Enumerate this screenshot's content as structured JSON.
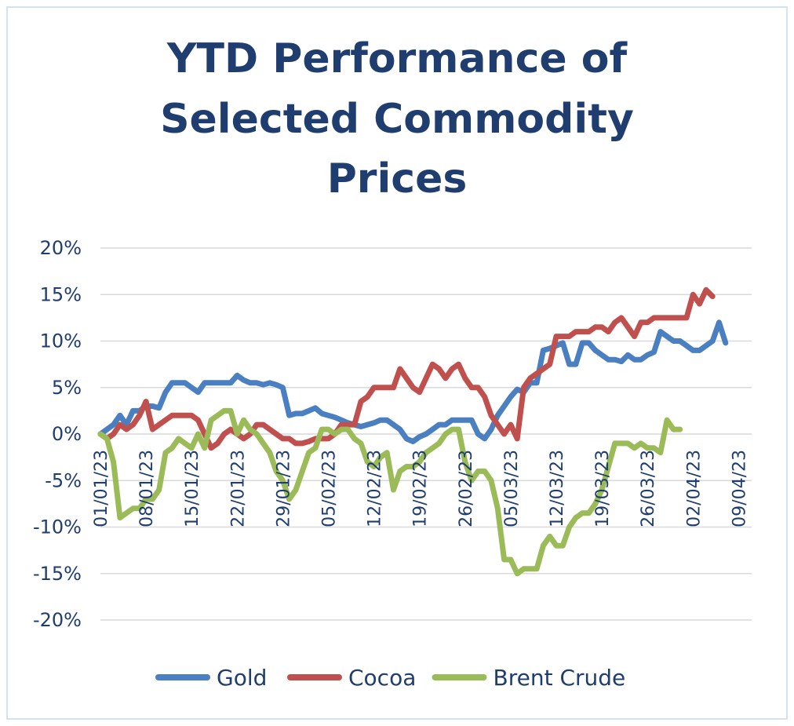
{
  "chart_data": {
    "type": "line",
    "title": [
      "YTD Performance of",
      "Selected Commodity",
      "Prices"
    ],
    "xlabel": "",
    "ylabel": "",
    "ylim": [
      -20,
      20
    ],
    "y_ticks": [
      20,
      15,
      10,
      5,
      0,
      -5,
      -10,
      -15,
      -20
    ],
    "y_tick_labels": [
      "20%",
      "15%",
      "10%",
      "5%",
      "0%",
      "-5%",
      "-10%",
      "-15%",
      "-20%"
    ],
    "x_range": [
      0,
      100
    ],
    "x_ticks": [
      0,
      7,
      14,
      21,
      28,
      35,
      42,
      49,
      56,
      63,
      70,
      77,
      84,
      91,
      98
    ],
    "x_tick_labels": [
      "01/01/23",
      "08/01/23",
      "15/01/23",
      "22/01/23",
      "29/01/23",
      "05/02/23",
      "12/02/23",
      "19/02/23",
      "26/02/23",
      "05/03/23",
      "12/03/23",
      "19/03/23",
      "26/03/23",
      "02/04/23",
      "09/04/23"
    ],
    "grid": true,
    "legend_position": "bottom",
    "series": [
      {
        "name": "Gold",
        "color": "#4a7fc1",
        "points": [
          [
            0,
            0
          ],
          [
            1,
            0.5
          ],
          [
            2,
            1
          ],
          [
            3,
            2
          ],
          [
            4,
            1
          ],
          [
            5,
            2.5
          ],
          [
            6,
            2.5
          ],
          [
            7,
            3
          ],
          [
            8,
            3
          ],
          [
            9,
            2.8
          ],
          [
            10,
            4.5
          ],
          [
            11,
            5.5
          ],
          [
            12,
            5.5
          ],
          [
            13,
            5.5
          ],
          [
            14,
            5
          ],
          [
            15,
            4.5
          ],
          [
            16,
            5.5
          ],
          [
            17,
            5.5
          ],
          [
            18,
            5.5
          ],
          [
            19,
            5.5
          ],
          [
            20,
            5.5
          ],
          [
            21,
            6.3
          ],
          [
            22,
            5.8
          ],
          [
            23,
            5.5
          ],
          [
            24,
            5.5
          ],
          [
            25,
            5.3
          ],
          [
            26,
            5.5
          ],
          [
            27,
            5.3
          ],
          [
            28,
            5
          ],
          [
            29,
            2
          ],
          [
            30,
            2.2
          ],
          [
            31,
            2.2
          ],
          [
            32,
            2.5
          ],
          [
            33,
            2.8
          ],
          [
            34,
            2.2
          ],
          [
            35,
            2
          ],
          [
            36,
            1.8
          ],
          [
            37,
            1.5
          ],
          [
            38,
            1.2
          ],
          [
            39,
            1
          ],
          [
            40,
            0.8
          ],
          [
            41,
            1
          ],
          [
            42,
            1.2
          ],
          [
            43,
            1.5
          ],
          [
            44,
            1.5
          ],
          [
            45,
            1
          ],
          [
            46,
            0.5
          ],
          [
            47,
            -0.5
          ],
          [
            48,
            -0.8
          ],
          [
            49,
            -0.3
          ],
          [
            50,
            0
          ],
          [
            51,
            0.5
          ],
          [
            52,
            1
          ],
          [
            53,
            1
          ],
          [
            54,
            1.5
          ],
          [
            55,
            1.5
          ],
          [
            56,
            1.5
          ],
          [
            57,
            1.5
          ],
          [
            58,
            0
          ],
          [
            59,
            -0.5
          ],
          [
            60,
            0.5
          ],
          [
            61,
            2
          ],
          [
            62,
            3
          ],
          [
            63,
            4
          ],
          [
            64,
            4.8
          ],
          [
            65,
            4.5
          ],
          [
            66,
            5.5
          ],
          [
            67,
            5.5
          ],
          [
            68,
            9
          ],
          [
            69,
            9.2
          ],
          [
            70,
            9.5
          ],
          [
            71,
            9.8
          ],
          [
            72,
            7.5
          ],
          [
            73,
            7.5
          ],
          [
            74,
            9.8
          ],
          [
            75,
            9.8
          ],
          [
            76,
            9
          ],
          [
            77,
            8.5
          ],
          [
            78,
            8
          ],
          [
            79,
            8
          ],
          [
            80,
            7.8
          ],
          [
            81,
            8.5
          ],
          [
            82,
            8
          ],
          [
            83,
            8
          ],
          [
            84,
            8.5
          ],
          [
            85,
            8.8
          ],
          [
            86,
            11
          ],
          [
            87,
            10.5
          ],
          [
            88,
            10
          ],
          [
            89,
            10
          ],
          [
            90,
            9.5
          ],
          [
            91,
            9
          ],
          [
            92,
            9
          ],
          [
            93,
            9.5
          ],
          [
            94,
            10
          ],
          [
            95,
            12
          ],
          [
            96,
            9.8
          ]
        ]
      },
      {
        "name": "Cocoa",
        "color": "#c0504d",
        "points": [
          [
            0,
            0
          ],
          [
            1,
            -0.5
          ],
          [
            2,
            0
          ],
          [
            3,
            1
          ],
          [
            4,
            0.5
          ],
          [
            5,
            1
          ],
          [
            6,
            2
          ],
          [
            7,
            3.5
          ],
          [
            8,
            0.5
          ],
          [
            9,
            1
          ],
          [
            10,
            1.5
          ],
          [
            11,
            2
          ],
          [
            12,
            2
          ],
          [
            13,
            2
          ],
          [
            14,
            2
          ],
          [
            15,
            1.5
          ],
          [
            16,
            0
          ],
          [
            17,
            -1.5
          ],
          [
            18,
            -1
          ],
          [
            19,
            0
          ],
          [
            20,
            0.5
          ],
          [
            21,
            0
          ],
          [
            22,
            -0.5
          ],
          [
            23,
            0
          ],
          [
            24,
            1
          ],
          [
            25,
            1
          ],
          [
            26,
            0.5
          ],
          [
            27,
            0
          ],
          [
            28,
            -0.5
          ],
          [
            29,
            -0.5
          ],
          [
            30,
            -1
          ],
          [
            31,
            -1
          ],
          [
            32,
            -0.8
          ],
          [
            33,
            -0.5
          ],
          [
            34,
            -0.5
          ],
          [
            35,
            -0.5
          ],
          [
            36,
            0
          ],
          [
            37,
            1
          ],
          [
            38,
            1
          ],
          [
            39,
            1
          ],
          [
            40,
            3.5
          ],
          [
            41,
            4
          ],
          [
            42,
            5
          ],
          [
            43,
            5
          ],
          [
            44,
            5
          ],
          [
            45,
            5
          ],
          [
            46,
            7
          ],
          [
            47,
            6
          ],
          [
            48,
            5
          ],
          [
            49,
            4.5
          ],
          [
            50,
            6
          ],
          [
            51,
            7.5
          ],
          [
            52,
            7
          ],
          [
            53,
            6
          ],
          [
            54,
            7
          ],
          [
            55,
            7.5
          ],
          [
            56,
            6
          ],
          [
            57,
            5
          ],
          [
            58,
            5
          ],
          [
            59,
            4
          ],
          [
            60,
            2
          ],
          [
            61,
            1
          ],
          [
            62,
            0
          ],
          [
            63,
            1
          ],
          [
            64,
            -0.5
          ],
          [
            65,
            5
          ],
          [
            66,
            6
          ],
          [
            67,
            6.5
          ],
          [
            68,
            7
          ],
          [
            69,
            7.5
          ],
          [
            70,
            10.5
          ],
          [
            71,
            10.5
          ],
          [
            72,
            10.5
          ],
          [
            73,
            11
          ],
          [
            74,
            11
          ],
          [
            75,
            11
          ],
          [
            76,
            11.5
          ],
          [
            77,
            11.5
          ],
          [
            78,
            11
          ],
          [
            79,
            12
          ],
          [
            80,
            12.5
          ],
          [
            81,
            11.5
          ],
          [
            82,
            10.5
          ],
          [
            83,
            12
          ],
          [
            84,
            12
          ],
          [
            85,
            12.5
          ],
          [
            86,
            12.5
          ],
          [
            87,
            12.5
          ],
          [
            88,
            12.5
          ],
          [
            89,
            12.5
          ],
          [
            90,
            12.5
          ],
          [
            91,
            15
          ],
          [
            92,
            14
          ],
          [
            93,
            15.5
          ],
          [
            94,
            14.8
          ]
        ]
      },
      {
        "name": "Brent Crude",
        "color": "#9bbb59",
        "points": [
          [
            0,
            0
          ],
          [
            1,
            -0.5
          ],
          [
            2,
            -3
          ],
          [
            3,
            -9
          ],
          [
            4,
            -8.5
          ],
          [
            5,
            -8
          ],
          [
            6,
            -8
          ],
          [
            7,
            -7
          ],
          [
            8,
            -7
          ],
          [
            9,
            -6
          ],
          [
            10,
            -2
          ],
          [
            11,
            -1.5
          ],
          [
            12,
            -0.5
          ],
          [
            13,
            -1
          ],
          [
            14,
            -1.5
          ],
          [
            15,
            0
          ],
          [
            16,
            -1.5
          ],
          [
            17,
            1.5
          ],
          [
            18,
            2
          ],
          [
            19,
            2.5
          ],
          [
            20,
            2.5
          ],
          [
            21,
            0
          ],
          [
            22,
            1.5
          ],
          [
            23,
            0.5
          ],
          [
            24,
            0
          ],
          [
            25,
            -1
          ],
          [
            26,
            -2
          ],
          [
            27,
            -4
          ],
          [
            28,
            -5
          ],
          [
            29,
            -7
          ],
          [
            30,
            -6
          ],
          [
            31,
            -4
          ],
          [
            32,
            -2
          ],
          [
            33,
            -1.5
          ],
          [
            34,
            0.5
          ],
          [
            35,
            0.5
          ],
          [
            36,
            0
          ],
          [
            37,
            0.5
          ],
          [
            38,
            0.5
          ],
          [
            39,
            -0.5
          ],
          [
            40,
            -1
          ],
          [
            41,
            -3
          ],
          [
            42,
            -3.5
          ],
          [
            43,
            -2.5
          ],
          [
            44,
            -2
          ],
          [
            45,
            -6
          ],
          [
            46,
            -4
          ],
          [
            47,
            -3.5
          ],
          [
            48,
            -3.5
          ],
          [
            49,
            -3
          ],
          [
            50,
            -2
          ],
          [
            51,
            -1.5
          ],
          [
            52,
            -1
          ],
          [
            53,
            0
          ],
          [
            54,
            0.5
          ],
          [
            55,
            0.5
          ],
          [
            56,
            -3
          ],
          [
            57,
            -5
          ],
          [
            58,
            -4
          ],
          [
            59,
            -4
          ],
          [
            60,
            -5
          ],
          [
            61,
            -8
          ],
          [
            62,
            -13.5
          ],
          [
            63,
            -13.5
          ],
          [
            64,
            -15
          ],
          [
            65,
            -14.5
          ],
          [
            66,
            -14.5
          ],
          [
            67,
            -14.5
          ],
          [
            68,
            -12
          ],
          [
            69,
            -11
          ],
          [
            70,
            -12
          ],
          [
            71,
            -12
          ],
          [
            72,
            -10
          ],
          [
            73,
            -9
          ],
          [
            74,
            -8.5
          ],
          [
            75,
            -8.5
          ],
          [
            76,
            -7.5
          ],
          [
            77,
            -6
          ],
          [
            78,
            -3.5
          ],
          [
            79,
            -1
          ],
          [
            80,
            -1
          ],
          [
            81,
            -1
          ],
          [
            82,
            -1.5
          ],
          [
            83,
            -1
          ],
          [
            84,
            -1.5
          ],
          [
            85,
            -1.5
          ],
          [
            86,
            -2
          ],
          [
            87,
            1.5
          ],
          [
            88,
            0.5
          ],
          [
            89,
            0.5
          ]
        ]
      }
    ]
  }
}
